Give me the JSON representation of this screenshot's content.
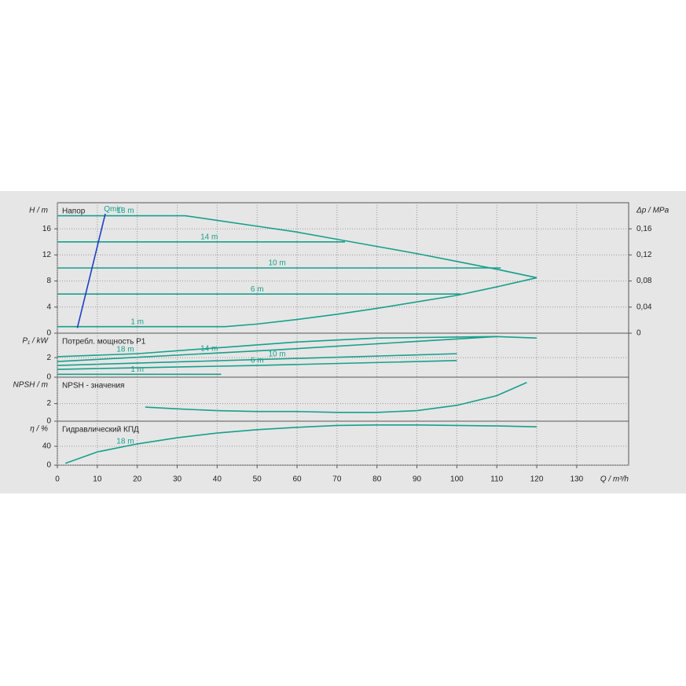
{
  "chart_data": [
    {
      "type": "line",
      "title": "Напор",
      "ylabel": "H / m",
      "y2label": "Δp / MPa",
      "ylim": [
        0,
        20
      ],
      "yticks": [
        0,
        4,
        8,
        12,
        16
      ],
      "y2lim": [
        0,
        0.2
      ],
      "y2ticks": [
        0,
        {
          "value": 0.04,
          "label": "0,04"
        },
        {
          "value": 0.08,
          "label": "0,08"
        },
        {
          "value": 0.12,
          "label": "0,12"
        },
        {
          "value": 0.16,
          "label": "0,16"
        }
      ],
      "grid": true,
      "series": [
        {
          "name": "18 m",
          "color": "#17a08c",
          "x": [
            0,
            32,
            40,
            50,
            60,
            70,
            80,
            90,
            100,
            110,
            120
          ],
          "values": [
            18,
            18,
            17.3,
            16.4,
            15.5,
            14.4,
            13.3,
            12.2,
            11,
            9.8,
            8.5
          ]
        },
        {
          "name": "14 m",
          "color": "#17a08c",
          "x": [
            0,
            72
          ],
          "values": [
            14,
            14
          ]
        },
        {
          "name": "10 m",
          "color": "#17a08c",
          "x": [
            0,
            111
          ],
          "values": [
            10,
            10
          ]
        },
        {
          "name": "6 m",
          "color": "#17a08c",
          "x": [
            0,
            101
          ],
          "values": [
            6,
            6
          ]
        },
        {
          "name": "1 m",
          "color": "#17a08c",
          "x": [
            0,
            42,
            50,
            60,
            70,
            80,
            90,
            100,
            110,
            120
          ],
          "values": [
            1,
            1,
            1.4,
            2.1,
            2.9,
            3.8,
            4.8,
            5.8,
            7.1,
            8.5
          ]
        },
        {
          "name": "Qmin",
          "color": "#1f3fc4",
          "x": [
            5,
            12
          ],
          "values": [
            0.8,
            18.3
          ]
        }
      ]
    },
    {
      "type": "line",
      "title": "Потребл. мощность P1",
      "ylabel": "P₁ / kW",
      "ylim": [
        0,
        4.5
      ],
      "yticks": [
        0,
        2
      ],
      "grid": true,
      "series": [
        {
          "name": "18 m",
          "color": "#17a08c",
          "x": [
            0,
            20,
            40,
            60,
            80,
            100,
            110,
            120
          ],
          "values": [
            2.1,
            2.4,
            3.0,
            3.6,
            4.0,
            4.1,
            4.15,
            4.0
          ]
        },
        {
          "name": "14 m",
          "color": "#17a08c",
          "x": [
            0,
            55,
            110
          ],
          "values": [
            1.6,
            2.8,
            4.15
          ]
        },
        {
          "name": "10 m",
          "color": "#17a08c",
          "x": [
            0,
            50,
            100
          ],
          "values": [
            1.2,
            1.8,
            2.4
          ]
        },
        {
          "name": "6 m",
          "color": "#17a08c",
          "x": [
            0,
            50,
            100
          ],
          "values": [
            0.8,
            1.2,
            1.7
          ]
        },
        {
          "name": "1 m",
          "color": "#17a08c",
          "x": [
            0,
            41
          ],
          "values": [
            0.3,
            0.3
          ]
        }
      ]
    },
    {
      "type": "line",
      "title": "NPSH - значения",
      "ylabel": "NPSH / m",
      "ylim": [
        0,
        5
      ],
      "yticks": [
        0,
        2
      ],
      "grid": true,
      "series": [
        {
          "color": "#17a08c",
          "x": [
            22,
            30,
            40,
            50,
            60,
            70,
            80,
            90,
            100,
            110,
            117.5
          ],
          "values": [
            1.6,
            1.4,
            1.2,
            1.1,
            1.1,
            1.0,
            1.0,
            1.2,
            1.8,
            2.9,
            4.4
          ]
        }
      ]
    },
    {
      "type": "line",
      "title": "Гидравлический КПД",
      "ylabel": "η / %",
      "xlabel": "Q / m³/h",
      "ylim": [
        0,
        93
      ],
      "yticks": [
        0,
        40
      ],
      "grid": true,
      "xlim": [
        0,
        143
      ],
      "xticks": [
        0,
        10,
        20,
        30,
        40,
        50,
        60,
        70,
        80,
        90,
        100,
        110,
        120,
        130
      ],
      "series": [
        {
          "name": "18 m",
          "color": "#17a08c",
          "x": [
            2,
            10,
            20,
            30,
            40,
            50,
            60,
            70,
            80,
            90,
            100,
            110,
            120
          ],
          "values": [
            4,
            28,
            45,
            58,
            68,
            75,
            80,
            84,
            85,
            85,
            84,
            83,
            81
          ]
        }
      ]
    }
  ]
}
